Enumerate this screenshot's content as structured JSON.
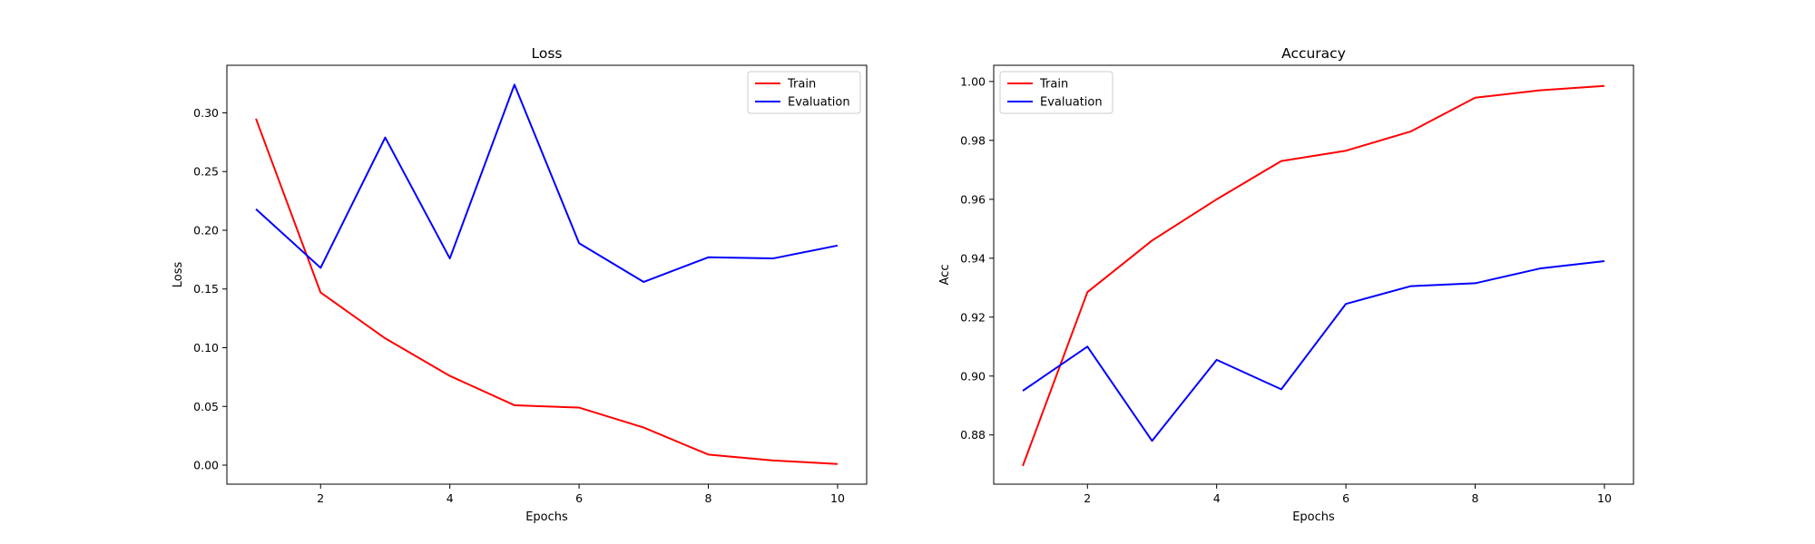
{
  "chart_data": [
    {
      "type": "line",
      "title": "Loss",
      "xlabel": "Epochs",
      "ylabel": "Loss",
      "x": [
        1,
        2,
        3,
        4,
        5,
        6,
        7,
        8,
        9,
        10
      ],
      "xlim": [
        0.55,
        10.45
      ],
      "ylim": [
        -0.0162,
        0.3405
      ],
      "xticks": [
        2,
        4,
        6,
        8,
        10
      ],
      "yticks": [
        0.0,
        0.05,
        0.1,
        0.15,
        0.2,
        0.25,
        0.3
      ],
      "ytick_decimals": 2,
      "legend_position": "top-right",
      "grid": false,
      "series": [
        {
          "name": "Train",
          "color": "#ff0000",
          "values": [
            0.295,
            0.147,
            0.108,
            0.076,
            0.051,
            0.049,
            0.032,
            0.009,
            0.004,
            0.001
          ]
        },
        {
          "name": "Evaluation",
          "color": "#0000ff",
          "values": [
            0.218,
            0.168,
            0.279,
            0.176,
            0.324,
            0.189,
            0.156,
            0.177,
            0.176,
            0.187
          ]
        }
      ]
    },
    {
      "type": "line",
      "title": "Accuracy",
      "xlabel": "Epochs",
      "ylabel": "Acc",
      "x": [
        1,
        2,
        3,
        4,
        5,
        6,
        7,
        8,
        9,
        10
      ],
      "xlim": [
        0.55,
        10.45
      ],
      "ylim": [
        0.8633,
        1.0055
      ],
      "xticks": [
        2,
        4,
        6,
        8,
        10
      ],
      "yticks": [
        0.88,
        0.9,
        0.92,
        0.94,
        0.96,
        0.98,
        1.0
      ],
      "ytick_decimals": 2,
      "legend_position": "top-left",
      "grid": false,
      "series": [
        {
          "name": "Train",
          "color": "#ff0000",
          "values": [
            0.8695,
            0.9285,
            0.946,
            0.96,
            0.973,
            0.9765,
            0.983,
            0.9945,
            0.997,
            0.9985
          ]
        },
        {
          "name": "Evaluation",
          "color": "#0000ff",
          "values": [
            0.895,
            0.91,
            0.878,
            0.9055,
            0.8955,
            0.9245,
            0.9305,
            0.9315,
            0.9365,
            0.939
          ]
        }
      ]
    }
  ]
}
